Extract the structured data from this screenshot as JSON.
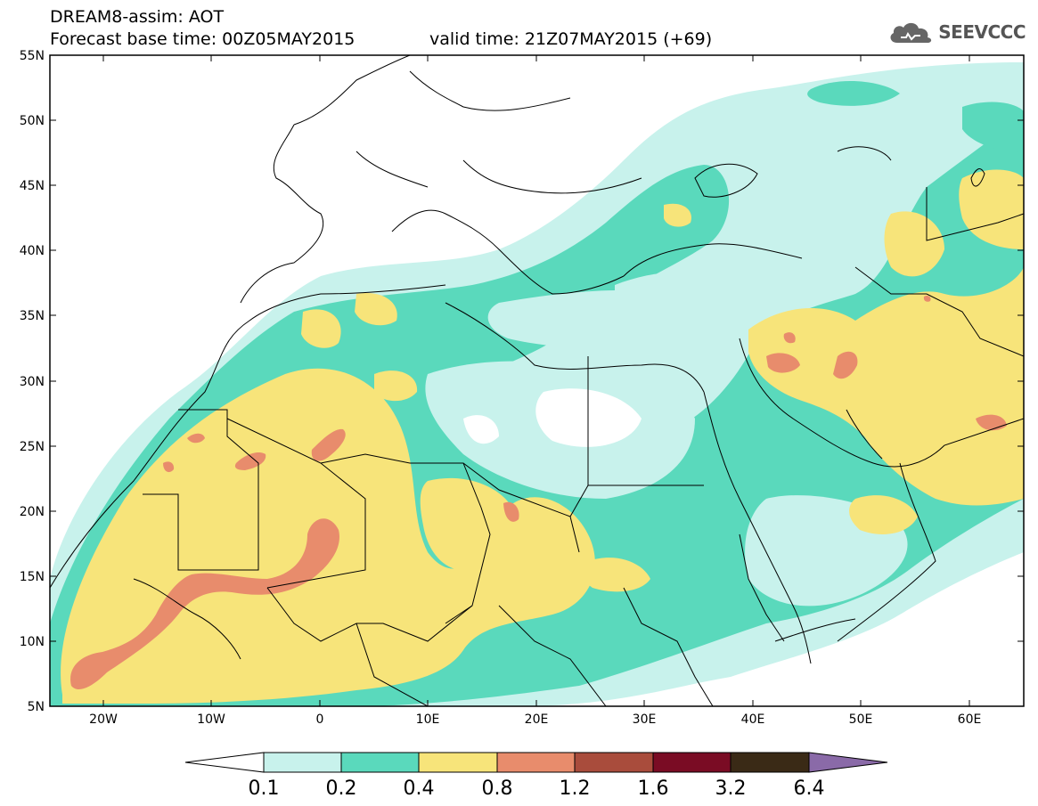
{
  "header": {
    "line1": "DREAM8-assim: AOT",
    "line2": "Forecast base time: 00Z05MAY2015",
    "line3": "valid time: 21Z07MAY2015 (+69)"
  },
  "logo": {
    "text": "SEEVCCC",
    "icon": "cloud-icon"
  },
  "map": {
    "lon_range": [
      -25,
      65
    ],
    "lat_range": [
      5,
      55
    ],
    "y_ticks": [
      "55N",
      "50N",
      "45N",
      "40N",
      "35N",
      "30N",
      "25N",
      "20N",
      "15N",
      "10N",
      "5N"
    ],
    "x_ticks": [
      "20W",
      "10W",
      "0",
      "10E",
      "20E",
      "30E",
      "40E",
      "50E",
      "60E"
    ]
  },
  "colorbar": {
    "labels": [
      "0.1",
      "0.2",
      "0.4",
      "0.8",
      "1.2",
      "1.6",
      "3.2",
      "6.4"
    ],
    "colors": [
      "#ffffff",
      "#c8f2ec",
      "#5ad9bc",
      "#f7e47a",
      "#e88c6c",
      "#a94c3c",
      "#7a0c24",
      "#3a2a16",
      "#8a6aa8"
    ]
  }
}
